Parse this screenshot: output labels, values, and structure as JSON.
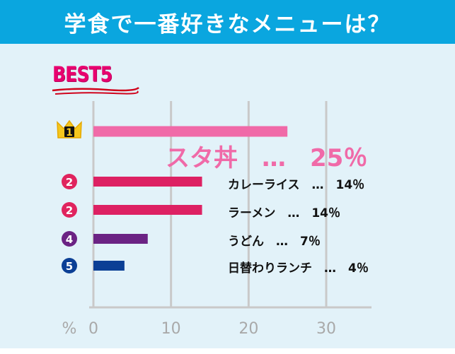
{
  "header": {
    "title": "学食で一番好きなメニューは？"
  },
  "badge": {
    "text": "BEST5"
  },
  "colors": {
    "header_bg": "#0aa6df",
    "panel_bg": "#e2f2f9",
    "grid": "#c9c9c9",
    "tick_text": "#a9a9a9",
    "badge_pink": "#e8006f",
    "rank_pink": "#e0245e",
    "rank_purple": "#6b2384",
    "rank_blue": "#0b3f95",
    "crown": "#f4c71e"
  },
  "ranks": [
    {
      "label": "1",
      "icon": "crown-icon",
      "color": "#f4c71e"
    },
    {
      "label": "2",
      "icon": "circle",
      "color": "#e0245e"
    },
    {
      "label": "2",
      "icon": "circle",
      "color": "#e0245e"
    },
    {
      "label": "4",
      "icon": "circle",
      "color": "#6b2384"
    },
    {
      "label": "5",
      "icon": "circle",
      "color": "#0b3f95"
    }
  ],
  "chart_data": {
    "type": "bar",
    "orientation": "horizontal",
    "categories": [
      "スタ丼",
      "カレーライス",
      "ラーメン",
      "うどん",
      "日替わりランチ"
    ],
    "values": [
      25,
      14,
      14,
      7,
      4
    ],
    "data_labels": [
      "スタ丼　…　25％",
      "カレーライス　…　14％",
      "ラーメン　…　14％",
      "うどん　…　7％",
      "日替わりランチ　…　4％"
    ],
    "bar_colors": [
      "#f06aa8",
      "#dd2163",
      "#dd2163",
      "#6b2384",
      "#0b3f95"
    ],
    "xlabel": "%",
    "xlim": [
      0,
      30
    ],
    "x_ticks": [
      "0",
      "10",
      "20",
      "30"
    ],
    "grid": true
  }
}
